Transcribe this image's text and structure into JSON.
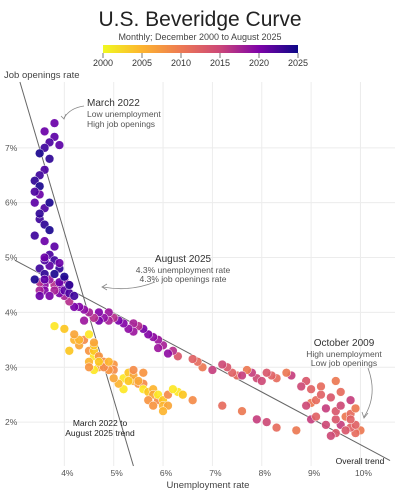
{
  "chart_data": {
    "type": "scatter",
    "title": "U.S. Beveridge Curve",
    "subtitle": "Monthly; December 2000 to August 2025",
    "xlabel": "Unemployment rate",
    "ylabel": "Job openings rate",
    "xlim": [
      3.0,
      10.7
    ],
    "ylim": [
      1.2,
      8.2
    ],
    "xticks": [
      {
        "v": 4,
        "label": "4%"
      },
      {
        "v": 5,
        "label": "5%"
      },
      {
        "v": 6,
        "label": "6%"
      },
      {
        "v": 7,
        "label": "7%"
      },
      {
        "v": 8,
        "label": "8%"
      },
      {
        "v": 9,
        "label": "9%"
      },
      {
        "v": 10,
        "label": "10%"
      }
    ],
    "yticks": [
      {
        "v": 2,
        "label": "2%"
      },
      {
        "v": 3,
        "label": "3%"
      },
      {
        "v": 4,
        "label": "4%"
      },
      {
        "v": 5,
        "label": "5%"
      },
      {
        "v": 6,
        "label": "6%"
      },
      {
        "v": 7,
        "label": "7%"
      }
    ],
    "grid": true,
    "colorbar": {
      "variable": "year",
      "range": [
        2000,
        2025
      ],
      "ticks": [
        {
          "v": 2000,
          "label": "2000"
        },
        {
          "v": 2005,
          "label": "2005"
        },
        {
          "v": 2010,
          "label": "2010"
        },
        {
          "v": 2015,
          "label": "2015"
        },
        {
          "v": 2020,
          "label": "2020"
        },
        {
          "v": 2025,
          "label": "2025"
        }
      ],
      "colormap": "plasma"
    },
    "series": [
      {
        "era": "2001-2008",
        "points": [
          [
            3.8,
            3.75
          ],
          [
            4.0,
            3.7
          ],
          [
            4.2,
            3.5
          ],
          [
            4.3,
            3.4
          ],
          [
            4.5,
            3.3
          ],
          [
            4.4,
            3.5
          ],
          [
            4.6,
            3.2
          ],
          [
            4.6,
            3.3
          ],
          [
            4.5,
            3.1
          ],
          [
            4.7,
            3.0
          ],
          [
            4.7,
            3.2
          ],
          [
            4.8,
            3.1
          ],
          [
            4.5,
            3.6
          ],
          [
            4.6,
            3.4
          ],
          [
            4.3,
            3.5
          ],
          [
            4.2,
            3.6
          ],
          [
            5.0,
            3.05
          ],
          [
            5.0,
            2.95
          ],
          [
            5.2,
            2.8
          ],
          [
            5.3,
            2.9
          ],
          [
            5.4,
            2.75
          ],
          [
            5.4,
            2.85
          ],
          [
            5.5,
            2.7
          ],
          [
            5.6,
            2.7
          ],
          [
            5.6,
            2.6
          ],
          [
            5.7,
            2.55
          ],
          [
            5.8,
            2.6
          ],
          [
            5.8,
            2.5
          ],
          [
            5.7,
            2.4
          ],
          [
            5.9,
            2.4
          ],
          [
            5.9,
            2.5
          ],
          [
            6.0,
            2.4
          ],
          [
            6.0,
            2.3
          ],
          [
            6.1,
            2.3
          ],
          [
            5.8,
            2.3
          ],
          [
            6.1,
            2.5
          ],
          [
            6.3,
            2.55
          ],
          [
            6.4,
            2.5
          ],
          [
            6.0,
            2.2
          ],
          [
            5.5,
            2.75
          ],
          [
            5.6,
            2.9
          ],
          [
            5.4,
            2.95
          ],
          [
            5.2,
            2.6
          ],
          [
            5.3,
            2.75
          ],
          [
            5.1,
            2.7
          ],
          [
            5.0,
            2.8
          ],
          [
            4.9,
            2.95
          ],
          [
            4.8,
            3.0
          ],
          [
            4.6,
            2.95
          ],
          [
            4.7,
            3.1
          ],
          [
            4.9,
            3.1
          ],
          [
            4.6,
            3.45
          ],
          [
            4.5,
            3.0
          ],
          [
            6.6,
            2.4
          ],
          [
            6.2,
            2.6
          ],
          [
            4.1,
            3.3
          ]
        ]
      },
      {
        "era": "2009-2014",
        "points": [
          [
            10.0,
            1.85
          ],
          [
            9.9,
            1.8
          ],
          [
            9.8,
            1.9
          ],
          [
            9.5,
            1.8
          ],
          [
            9.4,
            1.75
          ],
          [
            9.6,
            1.95
          ],
          [
            9.7,
            2.1
          ],
          [
            9.8,
            2.15
          ],
          [
            9.9,
            1.95
          ],
          [
            9.5,
            2.05
          ],
          [
            9.3,
            1.95
          ],
          [
            9.0,
            2.05
          ],
          [
            8.7,
            1.85
          ],
          [
            8.3,
            1.9
          ],
          [
            9.1,
            2.1
          ],
          [
            9.5,
            2.2
          ],
          [
            9.6,
            2.3
          ],
          [
            9.3,
            2.25
          ],
          [
            9.0,
            2.35
          ],
          [
            9.1,
            2.4
          ],
          [
            9.2,
            2.5
          ],
          [
            9.4,
            2.45
          ],
          [
            8.9,
            2.3
          ],
          [
            7.9,
            2.05
          ],
          [
            7.6,
            2.2
          ],
          [
            7.2,
            2.3
          ],
          [
            9.8,
            2.05
          ],
          [
            9.7,
            1.85
          ],
          [
            8.1,
            2.0
          ],
          [
            9.8,
            2.4
          ],
          [
            9.9,
            2.25
          ],
          [
            9.6,
            2.55
          ],
          [
            9.0,
            2.6
          ],
          [
            8.9,
            2.75
          ],
          [
            8.8,
            2.65
          ],
          [
            8.6,
            2.85
          ],
          [
            8.5,
            2.9
          ],
          [
            8.3,
            2.8
          ],
          [
            8.2,
            2.85
          ],
          [
            8.1,
            2.9
          ],
          [
            7.9,
            2.8
          ],
          [
            7.8,
            2.9
          ],
          [
            7.7,
            2.95
          ],
          [
            7.5,
            2.85
          ],
          [
            7.4,
            2.9
          ],
          [
            7.3,
            3.0
          ],
          [
            7.2,
            3.05
          ],
          [
            7.0,
            2.95
          ],
          [
            6.8,
            3.0
          ],
          [
            6.7,
            3.1
          ],
          [
            6.6,
            3.15
          ],
          [
            6.3,
            3.2
          ],
          [
            8.0,
            2.75
          ],
          [
            7.6,
            2.85
          ],
          [
            9.5,
            2.75
          ],
          [
            9.2,
            2.65
          ]
        ]
      },
      {
        "era": "2015-2019",
        "points": [
          [
            6.2,
            3.3
          ],
          [
            6.0,
            3.4
          ],
          [
            5.9,
            3.5
          ],
          [
            5.8,
            3.55
          ],
          [
            5.7,
            3.6
          ],
          [
            5.6,
            3.7
          ],
          [
            5.5,
            3.75
          ],
          [
            5.4,
            3.8
          ],
          [
            5.4,
            3.65
          ],
          [
            5.3,
            3.7
          ],
          [
            5.2,
            3.8
          ],
          [
            5.1,
            3.85
          ],
          [
            5.0,
            3.9
          ],
          [
            4.9,
            3.85
          ],
          [
            4.9,
            4.0
          ],
          [
            4.8,
            3.9
          ],
          [
            4.7,
            4.0
          ],
          [
            4.7,
            3.85
          ],
          [
            4.6,
            3.9
          ],
          [
            4.5,
            4.0
          ],
          [
            4.4,
            3.85
          ],
          [
            4.4,
            4.05
          ],
          [
            4.3,
            4.1
          ],
          [
            4.2,
            4.1
          ],
          [
            4.1,
            4.2
          ],
          [
            4.0,
            4.3
          ],
          [
            4.1,
            4.5
          ],
          [
            4.0,
            4.6
          ],
          [
            3.9,
            4.5
          ],
          [
            3.9,
            4.35
          ],
          [
            3.8,
            4.5
          ],
          [
            3.8,
            4.4
          ],
          [
            3.7,
            4.6
          ],
          [
            3.6,
            4.5
          ],
          [
            3.6,
            4.4
          ],
          [
            3.7,
            4.3
          ],
          [
            3.5,
            4.55
          ],
          [
            3.5,
            4.4
          ],
          [
            5.9,
            3.35
          ],
          [
            6.1,
            3.25
          ]
        ]
      },
      {
        "era": "2020-2025",
        "points": [
          [
            3.8,
            7.45
          ],
          [
            3.8,
            7.2
          ],
          [
            3.7,
            7.1
          ],
          [
            3.6,
            7.0
          ],
          [
            3.7,
            6.8
          ],
          [
            3.5,
            6.9
          ],
          [
            3.6,
            7.3
          ],
          [
            3.9,
            7.05
          ],
          [
            3.6,
            6.6
          ],
          [
            3.5,
            6.5
          ],
          [
            3.4,
            6.4
          ],
          [
            3.5,
            6.3
          ],
          [
            3.5,
            6.15
          ],
          [
            3.4,
            6.0
          ],
          [
            3.6,
            5.9
          ],
          [
            3.5,
            5.7
          ],
          [
            3.6,
            5.6
          ],
          [
            3.7,
            5.5
          ],
          [
            3.6,
            5.3
          ],
          [
            3.8,
            5.2
          ],
          [
            3.7,
            5.05
          ],
          [
            3.8,
            4.95
          ],
          [
            3.9,
            4.8
          ],
          [
            3.8,
            4.7
          ],
          [
            3.9,
            4.55
          ],
          [
            4.0,
            4.4
          ],
          [
            4.1,
            4.35
          ],
          [
            4.2,
            4.3
          ],
          [
            4.1,
            4.5
          ],
          [
            4.0,
            4.65
          ],
          [
            3.9,
            4.9
          ],
          [
            3.7,
            4.85
          ],
          [
            3.6,
            4.95
          ],
          [
            3.5,
            4.8
          ],
          [
            3.6,
            4.7
          ],
          [
            3.4,
            4.6
          ],
          [
            3.5,
            4.3
          ],
          [
            3.6,
            4.6
          ],
          [
            3.4,
            6.2
          ],
          [
            3.4,
            5.4
          ],
          [
            3.5,
            5.8
          ],
          [
            3.7,
            6.0
          ],
          [
            3.6,
            5.0
          ]
        ]
      }
    ],
    "trend_lines": [
      {
        "name": "Overall trend",
        "from": [
          3.0,
          4.95
        ],
        "to": [
          10.6,
          1.3
        ]
      },
      {
        "name": "March 2022 to August 2025 trend",
        "from": [
          3.1,
          8.2
        ],
        "to": [
          5.4,
          1.2
        ]
      }
    ],
    "annotations": [
      {
        "title": "March 2022",
        "lines": [
          "Low unemployment",
          "High job openings"
        ]
      },
      {
        "title": "August 2025",
        "lines": [
          "4.3% unemployment rate",
          "4.3% job openings rate"
        ]
      },
      {
        "title": "October 2009",
        "lines": [
          "High unemployment",
          "Low job openings"
        ]
      }
    ],
    "trend_labels": [
      {
        "lines": [
          "March 2022 to",
          "August 2025 trend"
        ]
      },
      {
        "lines": [
          "Overall trend"
        ]
      }
    ]
  }
}
